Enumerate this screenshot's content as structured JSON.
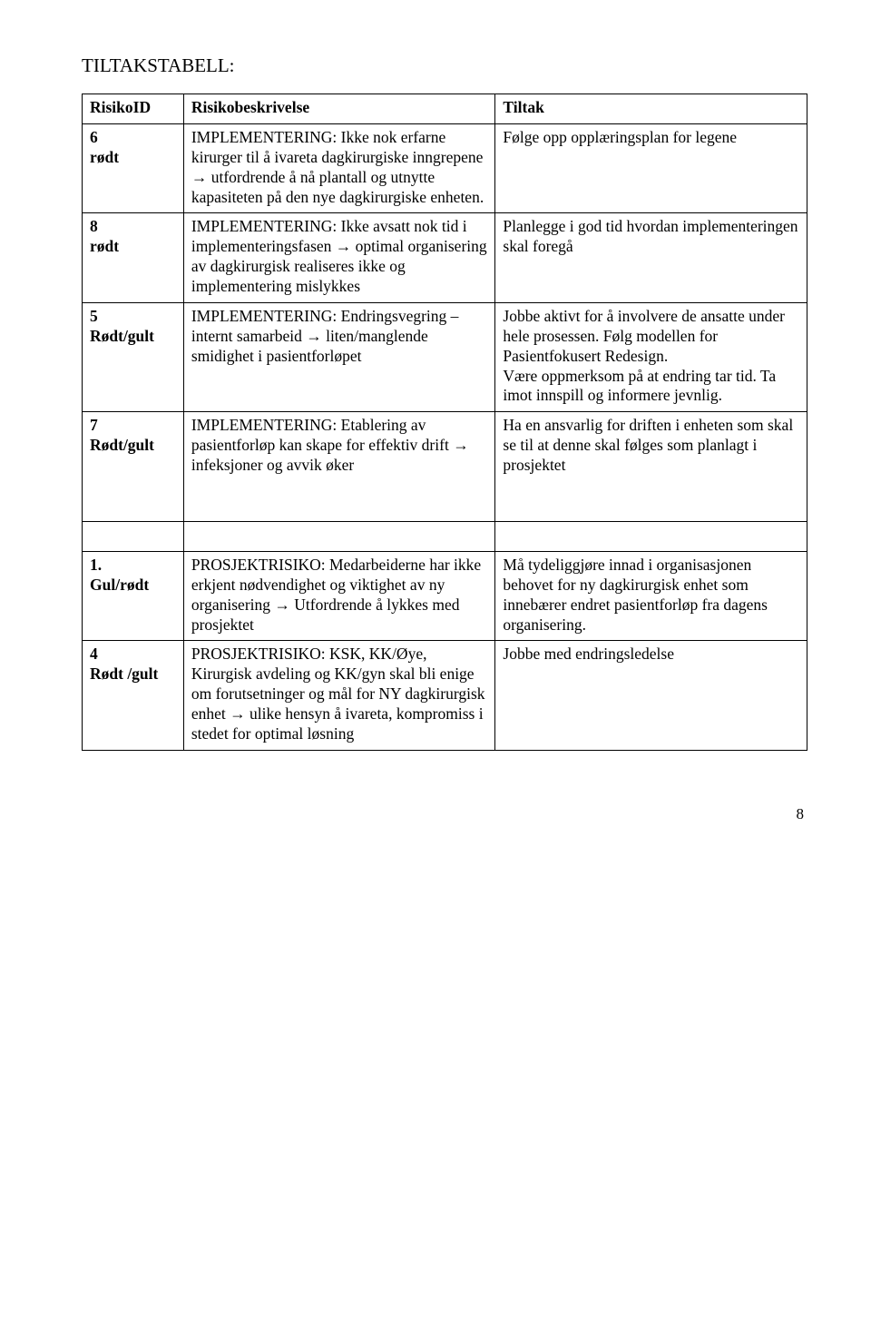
{
  "title": "TILTAKSTABELL:",
  "columns": {
    "c1": "RisikoID",
    "c2": "Risikobeskrivelse",
    "c3": "Tiltak"
  },
  "rows": [
    {
      "id_line1": "6",
      "id_line2": "rødt",
      "desc": "IMPLEMENTERING: Ikke nok erfarne kirurger til å ivareta dagkirurgiske inngrepene → utfordrende å nå plantall og utnytte kapasiteten på den nye dagkirurgiske enheten.",
      "tiltak": "Følge opp opplæringsplan for legene"
    },
    {
      "id_line1": "8",
      "id_line2": "rødt",
      "desc": "IMPLEMENTERING: Ikke avsatt nok tid i implementeringsfasen → optimal organisering av dagkirurgisk realiseres ikke og implementering mislykkes",
      "tiltak": "Planlegge i god tid hvordan implementeringen skal foregå"
    },
    {
      "id_line1": "5",
      "id_line2": "Rødt/gult",
      "desc": "IMPLEMENTERING: Endringsvegring – internt samarbeid → liten/manglende smidighet i pasientforløpet",
      "tiltak": "Jobbe aktivt for å involvere de ansatte under hele prosessen. Følg modellen for  Pasientfokusert Redesign.\nVære oppmerksom på at endring tar tid. Ta imot  innspill og informere jevnlig."
    },
    {
      "id_line1": "7",
      "id_line2": "Rødt/gult",
      "desc": "IMPLEMENTERING: Etablering av pasientforløp kan skape for effektiv drift → infeksjoner og avvik øker",
      "tiltak": "Ha en ansvarlig for driften i enheten som skal se til at denne skal følges som planlagt i prosjektet",
      "tall": true
    },
    {
      "id_line1": "1.",
      "id_line2": "Gul/rødt",
      "desc": "PROSJEKTRISIKO: Medarbeiderne har ikke erkjent nødvendighet og viktighet av ny organisering → Utfordrende å lykkes med prosjektet",
      "tiltak": "Må tydeliggjøre innad i organisasjonen behovet for ny dagkirurgisk enhet som innebærer endret pasientforløp fra dagens organisering.",
      "extra_space": true
    },
    {
      "id_line1": "4",
      "id_line2": "Rødt /gult",
      "desc": "PROSJEKTRISIKO: KSK, KK/Øye, Kirurgisk avdeling og KK/gyn skal bli enige om forutsetninger og mål for NY dagkirurgisk enhet → ulike hensyn å ivareta, kompromiss i stedet for optimal løsning",
      "tiltak": "Jobbe med endringsledelse"
    }
  ],
  "page_number": "8"
}
